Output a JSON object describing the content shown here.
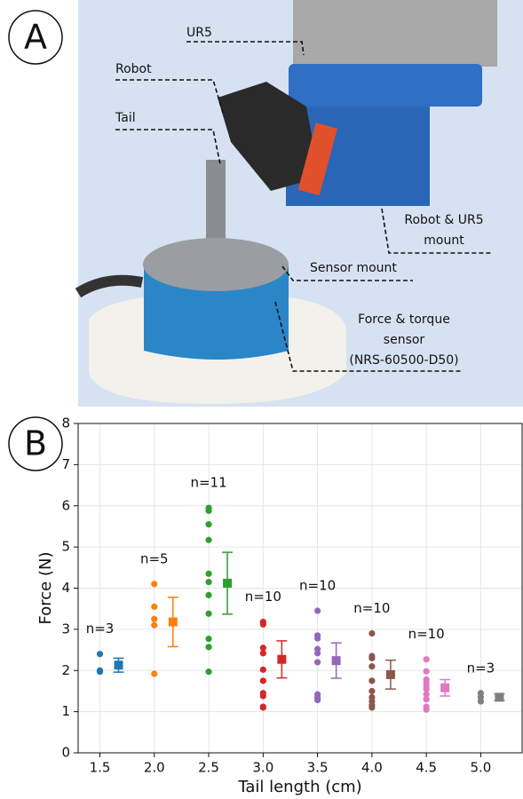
{
  "panel_a": {
    "label": "A",
    "annotations": [
      {
        "lines": [
          "UR5"
        ]
      },
      {
        "lines": [
          "Robot"
        ]
      },
      {
        "lines": [
          "Tail"
        ]
      },
      {
        "lines": [
          "Robot  & UR5",
          "mount"
        ]
      },
      {
        "lines": [
          "Sensor mount"
        ]
      },
      {
        "lines": [
          "Force & torque",
          "sensor",
          "(NRS-60500-D50)"
        ]
      }
    ]
  },
  "panel_b": {
    "label": "B"
  },
  "chart_data": {
    "type": "scatter",
    "x_label": "Tail length (cm)",
    "y_label": "Force (N)",
    "xlim": [
      1.3,
      5.38
    ],
    "ylim": [
      0,
      8
    ],
    "xticks": [
      {
        "value": 1.5,
        "label": "1.5"
      },
      {
        "value": 2.0,
        "label": "2.0"
      },
      {
        "value": 2.5,
        "label": "2.5"
      },
      {
        "value": 3.0,
        "label": "3.0"
      },
      {
        "value": 3.5,
        "label": "3.5"
      },
      {
        "value": 4.0,
        "label": "4.0"
      },
      {
        "value": 4.5,
        "label": "4.5"
      },
      {
        "value": 5.0,
        "label": "5.0"
      }
    ],
    "yticks": [
      0,
      1,
      2,
      3,
      4,
      5,
      6,
      7,
      8
    ],
    "grid": true,
    "groups": [
      {
        "x": 1.5,
        "color": "#1f77b4",
        "n_label": "n=3",
        "values": [
          2.4,
          2.0,
          1.97
        ],
        "mean": 2.13,
        "error": 0.17
      },
      {
        "x": 2.0,
        "color": "#ff7f0e",
        "n_label": "n=5",
        "values": [
          4.1,
          3.55,
          3.25,
          3.1,
          1.92
        ],
        "mean": 3.18,
        "error": 0.6
      },
      {
        "x": 2.5,
        "color": "#2ca02c",
        "n_label": "n=11",
        "values": [
          5.95,
          5.88,
          5.55,
          5.17,
          4.35,
          4.15,
          3.83,
          3.38,
          2.77,
          2.57,
          1.97
        ],
        "mean": 4.12,
        "error": 0.75
      },
      {
        "x": 3.0,
        "color": "#d62728",
        "n_label": "n=10",
        "values": [
          3.18,
          3.12,
          2.55,
          2.42,
          2.02,
          1.75,
          1.45,
          1.38,
          1.12,
          1.1
        ],
        "mean": 2.27,
        "error": 0.45
      },
      {
        "x": 3.5,
        "color": "#9467bd",
        "n_label": "n=10",
        "values": [
          3.45,
          2.85,
          2.78,
          2.52,
          2.42,
          2.2,
          1.42,
          1.35,
          1.3,
          1.28
        ],
        "mean": 2.24,
        "error": 0.43
      },
      {
        "x": 4.0,
        "color": "#8c564b",
        "n_label": "n=10",
        "values": [
          2.9,
          2.35,
          2.3,
          2.1,
          1.75,
          1.5,
          1.35,
          1.25,
          1.15,
          1.1
        ],
        "mean": 1.9,
        "error": 0.35
      },
      {
        "x": 4.5,
        "color": "#e377c2",
        "n_label": "n=10",
        "values": [
          2.27,
          1.98,
          1.78,
          1.7,
          1.62,
          1.55,
          1.42,
          1.3,
          1.12,
          1.05
        ],
        "mean": 1.58,
        "error": 0.2
      },
      {
        "x": 5.0,
        "color": "#7f7f7f",
        "n_label": "n=3",
        "values": [
          1.45,
          1.35,
          1.25
        ],
        "mean": 1.35,
        "error": 0.08
      }
    ]
  }
}
